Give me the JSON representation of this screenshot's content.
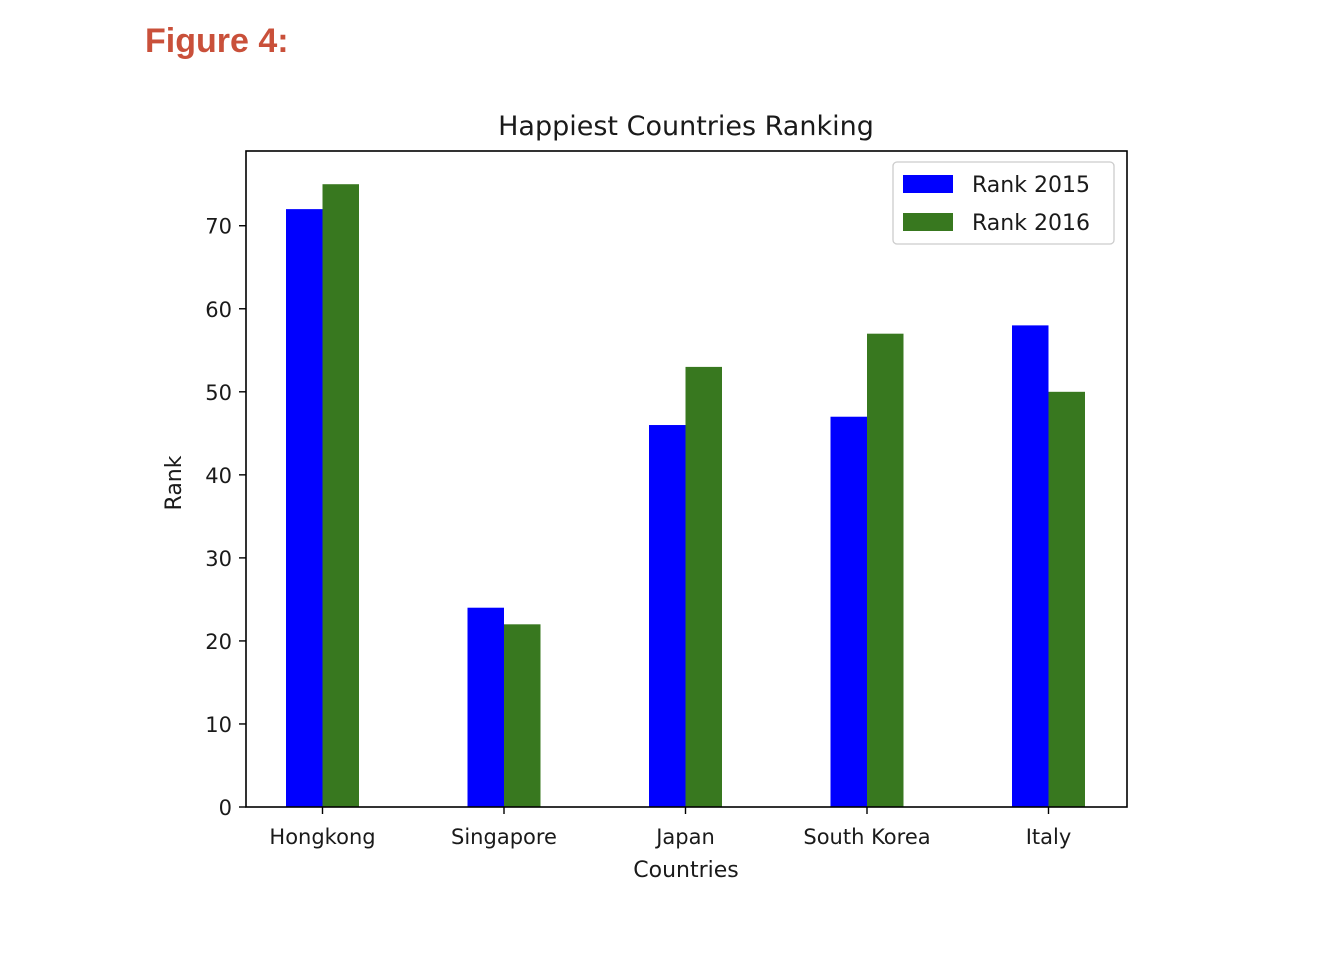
{
  "figure": {
    "label": "Figure 4:"
  },
  "chart_data": {
    "type": "bar",
    "title": "Happiest Countries Ranking",
    "xlabel": "Countries",
    "ylabel": "Rank",
    "categories": [
      "Hongkong",
      "Singapore",
      "Japan",
      "South Korea",
      "Italy"
    ],
    "series": [
      {
        "name": "Rank 2015",
        "color": "#0000ff",
        "values": [
          72,
          24,
          46,
          47,
          58
        ]
      },
      {
        "name": "Rank 2016",
        "color": "#38781f",
        "values": [
          75,
          22,
          53,
          57,
          50
        ]
      }
    ],
    "ylim": [
      0,
      79
    ],
    "yticks": [
      0,
      10,
      20,
      30,
      40,
      50,
      60,
      70
    ],
    "grid": false,
    "legend": "top-right"
  }
}
